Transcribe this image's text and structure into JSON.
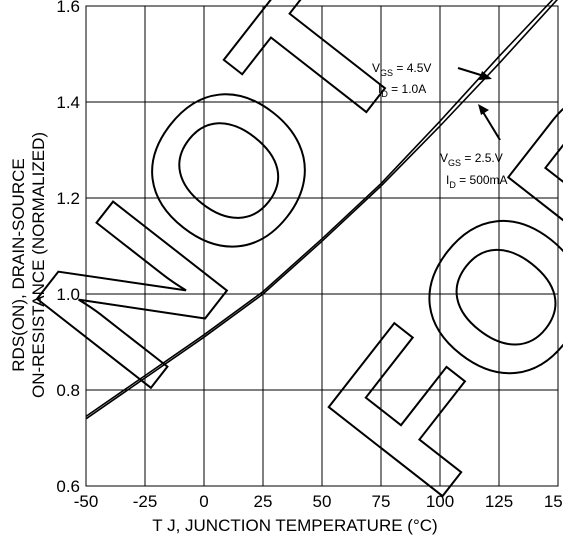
{
  "chart_data": {
    "type": "line",
    "xlabel": "T J, JUNCTION TEMPERATURE (°C)",
    "ylabel_line1": "RDS(ON), DRAIN-SOURCE",
    "ylabel_line2": "ON-RESISTANCE (NORMALIZED)",
    "xlim": [
      -50,
      150
    ],
    "ylim": [
      0.6,
      1.6
    ],
    "x_ticks": [
      -50,
      -25,
      0,
      25,
      50,
      75,
      100,
      125,
      150
    ],
    "x_tick_labels": [
      "-50",
      "-25",
      "0",
      "25",
      "50",
      "75",
      "100",
      "125",
      "150"
    ],
    "y_ticks": [
      0.6,
      0.8,
      1.0,
      1.2,
      1.4,
      1.6
    ],
    "y_tick_labels": [
      "0.6",
      "0.8",
      "1.0",
      "1.2",
      "1.4",
      "1.6"
    ],
    "grid": true,
    "series": [
      {
        "x": [
          -50,
          -25,
          0,
          25,
          50,
          75,
          100,
          125,
          150
        ],
        "y": [
          0.74,
          0.825,
          0.91,
          1.0,
          1.11,
          1.225,
          1.35,
          1.48,
          1.615
        ]
      },
      {
        "x": [
          -50,
          -25,
          0,
          25,
          50,
          75,
          100,
          125,
          150
        ],
        "y": [
          0.745,
          0.83,
          0.915,
          1.005,
          1.115,
          1.23,
          1.36,
          1.495,
          1.625
        ]
      }
    ],
    "annotations": [
      {
        "line1_main": "V",
        "line1_sub": "GS",
        "line1_rest": " = 4.5V",
        "line2_main": "I",
        "line2_sub": "D",
        "line2_rest": " = 1.0A"
      },
      {
        "line1_main": "V",
        "line1_sub": "GS",
        "line1_rest": " = 2.5.V",
        "line2_main": "I",
        "line2_sub": "D",
        "line2_rest": " = 500mA"
      }
    ]
  },
  "watermark": "NOT FOR NEW DESIGN"
}
